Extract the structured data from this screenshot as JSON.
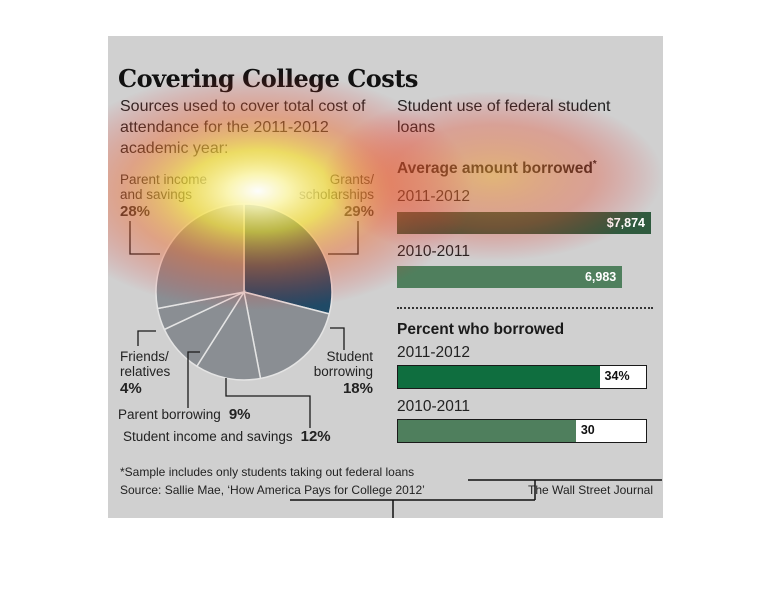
{
  "title": "Covering College Costs",
  "left_subtitle": "Sources used to cover total cost of attendance for the 2011-2012 academic year:",
  "right_subtitle": "Student use of federal student loans",
  "footnote": "*Sample includes only students taking out federal loans",
  "source": "Source: Sallie Mae, ‘How America Pays for College 2012’",
  "credit": "The Wall Street Journal",
  "colors": {
    "background": "#d0d0d0",
    "bar_avg": "#4f7f5d",
    "bar_pct_2012": "#0f6e3f",
    "bar_pct_2011": "#4f7f5d",
    "pie_grants": "#1f4a66",
    "pie_other": "#8a8e93"
  },
  "chart_data": [
    {
      "type": "pie",
      "title": "Sources used to cover total cost of attendance for the 2011-2012 academic year:",
      "slices": [
        {
          "label": "Grants/ scholarships",
          "label_lines": [
            "Grants/",
            "scholarships"
          ],
          "value": 29,
          "pct_label": "29%"
        },
        {
          "label": "Student borrowing",
          "label_lines": [
            "Student",
            "borrowing"
          ],
          "value": 18,
          "pct_label": "18%"
        },
        {
          "label": "Student income and savings",
          "label_lines": [
            "Student income and savings"
          ],
          "value": 12,
          "pct_label": "12%"
        },
        {
          "label": "Parent borrowing",
          "label_lines": [
            "Parent borrowing"
          ],
          "value": 9,
          "pct_label": "9%"
        },
        {
          "label": "Friends/ relatives",
          "label_lines": [
            "Friends/",
            "relatives"
          ],
          "value": 4,
          "pct_label": "4%"
        },
        {
          "label": "Parent income and savings",
          "label_lines": [
            "Parent income",
            "and savings"
          ],
          "value": 28,
          "pct_label": "28%"
        }
      ]
    },
    {
      "type": "bar",
      "orientation": "horizontal",
      "title": "Average amount borrowed",
      "title_marker": "*",
      "categories": [
        "2011-2012",
        "2010-2011"
      ],
      "values": [
        7874,
        6983
      ],
      "value_labels": [
        "$7,874",
        "6,983"
      ],
      "xlim": [
        0,
        7874
      ]
    },
    {
      "type": "bar",
      "orientation": "horizontal",
      "title": "Percent who borrowed",
      "categories": [
        "2011-2012",
        "2010-2011"
      ],
      "values": [
        34,
        30
      ],
      "value_labels": [
        "34%",
        "30"
      ],
      "xlim": [
        0,
        100
      ]
    }
  ]
}
